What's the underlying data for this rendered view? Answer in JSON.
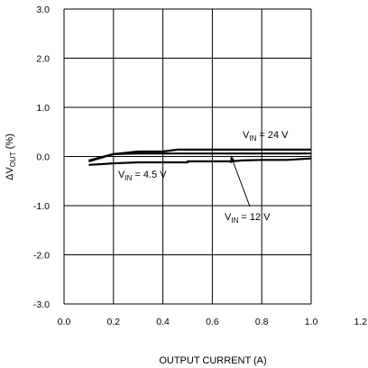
{
  "chart_data": {
    "type": "line",
    "xlabel": "OUTPUT CURRENT (A)",
    "ylabel": "ΔV",
    "ylabel_sub": "OUT",
    "ylabel_unit": " (%)",
    "xlim": [
      0,
      1.2
    ],
    "ylim": [
      -3,
      3
    ],
    "x_ticks": [
      "0.0",
      "0.2",
      "0.4",
      "0.6",
      "0.8",
      "1.0",
      "1.2"
    ],
    "y_ticks": [
      "3.0",
      "2.0",
      "1.0",
      "0.0",
      "-1.0",
      "-2.0",
      "-3.0"
    ],
    "grid": true,
    "series": [
      {
        "name": "V_IN = 24 V",
        "x": [
          0.1,
          0.2,
          0.3,
          0.4,
          0.46,
          0.6,
          0.8,
          1.0
        ],
        "y": [
          -0.08,
          0.05,
          0.1,
          0.1,
          0.14,
          0.14,
          0.14,
          0.14
        ]
      },
      {
        "name": "V_IN = 12 V",
        "x": [
          0.1,
          0.2,
          0.3,
          0.4,
          0.6,
          0.8,
          1.0
        ],
        "y": [
          -0.1,
          0.05,
          0.06,
          0.06,
          0.06,
          0.06,
          0.06
        ]
      },
      {
        "name": "V_IN = 4.5 V",
        "x": [
          0.1,
          0.2,
          0.3,
          0.5,
          0.5,
          0.68,
          0.72,
          0.8,
          0.9,
          1.0
        ],
        "y": [
          -0.17,
          -0.14,
          -0.12,
          -0.12,
          -0.1,
          -0.1,
          -0.08,
          -0.07,
          -0.07,
          -0.04
        ]
      }
    ],
    "annotations": [
      {
        "main": "V",
        "sub": "IN",
        "rest": " = 24 V"
      },
      {
        "main": "V",
        "sub": "IN",
        "rest": " = 4.5 V"
      },
      {
        "main": "V",
        "sub": "IN",
        "rest": " = 12 V"
      }
    ]
  }
}
